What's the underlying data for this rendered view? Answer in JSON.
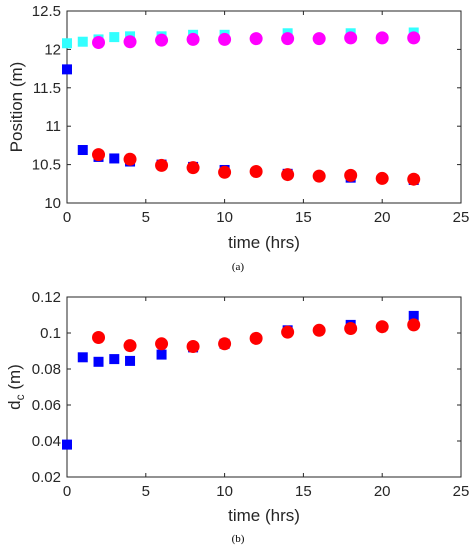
{
  "chart_data": [
    {
      "type": "scatter",
      "caption": "(a)",
      "xlabel": "time (hrs)",
      "ylabel": "Position (m)",
      "xlim": [
        0,
        25
      ],
      "ylim": [
        10,
        12.5
      ],
      "xticks": [
        "0",
        "5",
        "10",
        "15",
        "20",
        "25"
      ],
      "yticks": [
        "10",
        "10.5",
        "11",
        "11.5",
        "12",
        "12.5"
      ],
      "grid": false,
      "series": [
        {
          "color": "#33ffff",
          "marker": "square",
          "x": [
            0,
            1,
            2,
            3,
            4,
            6,
            8,
            10,
            14,
            18,
            22
          ],
          "y": [
            12.08,
            12.1,
            12.13,
            12.16,
            12.17,
            12.17,
            12.19,
            12.19,
            12.21,
            12.21,
            12.22
          ]
        },
        {
          "color": "#ff00ff",
          "marker": "circle",
          "x": [
            2,
            4,
            6,
            8,
            10,
            12,
            14,
            16,
            18,
            20,
            22
          ],
          "y": [
            12.09,
            12.1,
            12.12,
            12.13,
            12.13,
            12.14,
            12.14,
            12.14,
            12.15,
            12.15,
            12.15
          ]
        },
        {
          "color": "#0000ff",
          "marker": "square",
          "x": [
            0,
            1,
            2,
            3,
            4,
            6,
            8,
            10,
            14,
            18,
            22
          ],
          "y": [
            11.74,
            10.69,
            10.6,
            10.58,
            10.54,
            10.5,
            10.47,
            10.43,
            10.38,
            10.33,
            10.3
          ]
        },
        {
          "color": "#ff0000",
          "marker": "circle",
          "x": [
            2,
            4,
            6,
            8,
            10,
            12,
            14,
            16,
            18,
            20,
            22
          ],
          "y": [
            10.63,
            10.57,
            10.49,
            10.46,
            10.4,
            10.41,
            10.37,
            10.35,
            10.36,
            10.32,
            10.31
          ]
        }
      ]
    },
    {
      "type": "scatter",
      "caption": "(b)",
      "xlabel": "time (hrs)",
      "ylabel_main": "d",
      "ylabel_sub": "c",
      "ylabel_unit": " (m)",
      "xlim": [
        0,
        25
      ],
      "ylim": [
        0.02,
        0.12
      ],
      "xticks": [
        "0",
        "5",
        "10",
        "15",
        "20",
        "25"
      ],
      "yticks": [
        "0.02",
        "0.04",
        "0.06",
        "0.08",
        "0.1",
        "0.12"
      ],
      "grid": false,
      "series": [
        {
          "color": "#0000ff",
          "marker": "square",
          "x": [
            0,
            1,
            2,
            3,
            4,
            6,
            8,
            10,
            14,
            18,
            22
          ],
          "y": [
            0.038,
            0.0865,
            0.084,
            0.0855,
            0.0845,
            0.088,
            0.092,
            0.094,
            0.1015,
            0.1045,
            0.1095
          ]
        },
        {
          "color": "#ff0000",
          "marker": "circle",
          "x": [
            2,
            4,
            6,
            8,
            10,
            12,
            14,
            16,
            18,
            20,
            22
          ],
          "y": [
            0.0975,
            0.093,
            0.094,
            0.0925,
            0.094,
            0.097,
            0.1005,
            0.1015,
            0.1025,
            0.1035,
            0.1045
          ]
        }
      ]
    }
  ]
}
